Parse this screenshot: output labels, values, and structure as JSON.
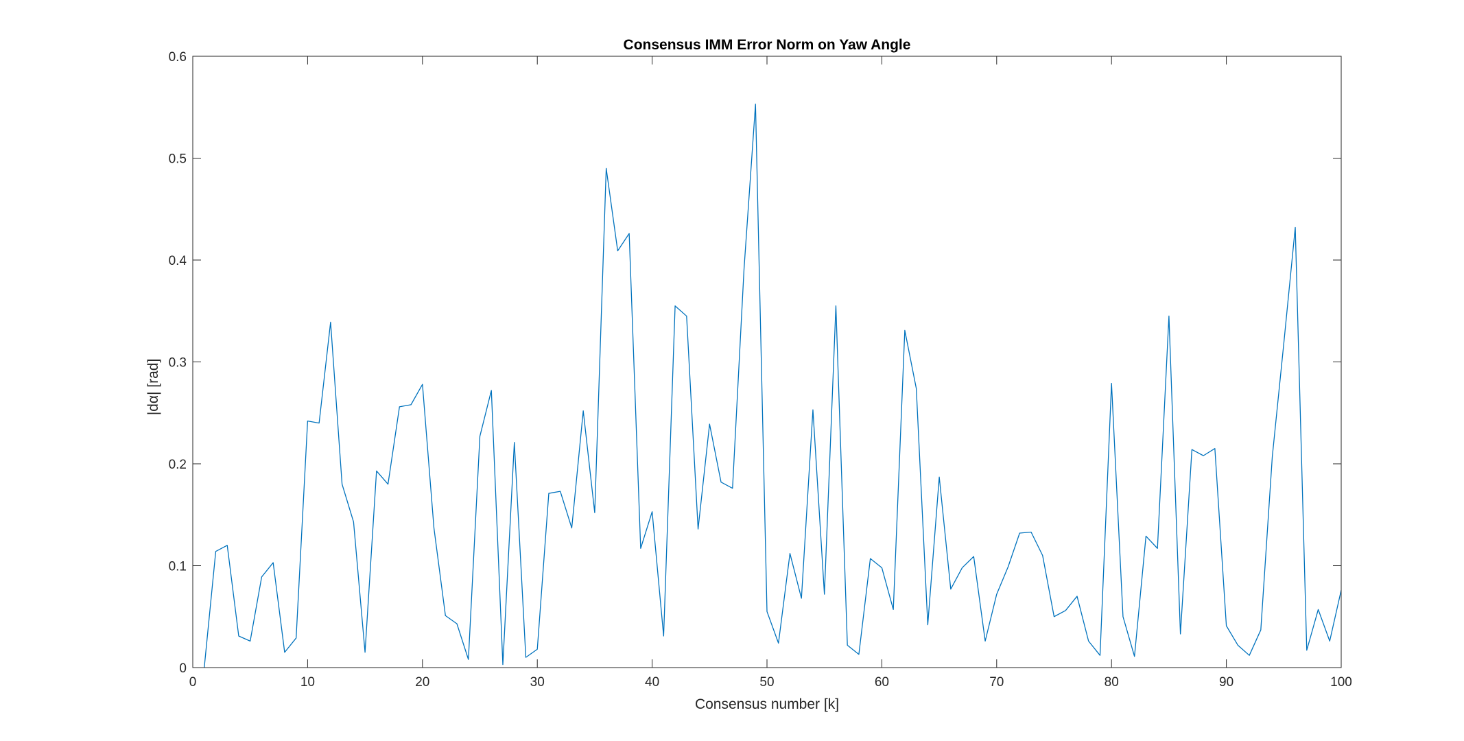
{
  "chart_data": {
    "type": "line",
    "title": "Consensus IMM Error Norm on Yaw Angle",
    "xlabel": "Consensus number [k]",
    "ylabel": "|dα| [rad]",
    "xlim": [
      0,
      100
    ],
    "ylim": [
      0,
      0.6
    ],
    "xticks": [
      0,
      10,
      20,
      30,
      40,
      50,
      60,
      70,
      80,
      90,
      100
    ],
    "yticks": [
      0,
      0.1,
      0.2,
      0.3,
      0.4,
      0.5,
      0.6
    ],
    "xtick_labels": [
      "0",
      "10",
      "20",
      "30",
      "40",
      "50",
      "60",
      "70",
      "80",
      "90",
      "100"
    ],
    "ytick_labels": [
      "0",
      "0.1",
      "0.2",
      "0.3",
      "0.4",
      "0.5",
      "0.6"
    ],
    "grid": false,
    "box": true,
    "line_color": "#0072BD",
    "x": [
      1,
      2,
      3,
      4,
      5,
      6,
      7,
      8,
      9,
      10,
      11,
      12,
      13,
      14,
      15,
      16,
      17,
      18,
      19,
      20,
      21,
      22,
      23,
      24,
      25,
      26,
      27,
      28,
      29,
      30,
      31,
      32,
      33,
      34,
      35,
      36,
      37,
      38,
      39,
      40,
      41,
      42,
      43,
      44,
      45,
      46,
      47,
      48,
      49,
      50,
      51,
      52,
      53,
      54,
      55,
      56,
      57,
      58,
      59,
      60,
      61,
      62,
      63,
      64,
      65,
      66,
      67,
      68,
      69,
      70,
      71,
      72,
      73,
      74,
      75,
      76,
      77,
      78,
      79,
      80,
      81,
      82,
      83,
      84,
      85,
      86,
      87,
      88,
      89,
      90,
      91,
      92,
      93,
      94,
      95,
      96,
      97,
      98,
      99,
      100
    ],
    "y": [
      0.0,
      0.114,
      0.12,
      0.031,
      0.026,
      0.089,
      0.103,
      0.015,
      0.029,
      0.242,
      0.24,
      0.339,
      0.18,
      0.143,
      0.015,
      0.193,
      0.18,
      0.256,
      0.258,
      0.278,
      0.137,
      0.051,
      0.043,
      0.008,
      0.227,
      0.272,
      0.003,
      0.221,
      0.01,
      0.018,
      0.171,
      0.173,
      0.137,
      0.252,
      0.152,
      0.49,
      0.409,
      0.426,
      0.117,
      0.153,
      0.031,
      0.355,
      0.345,
      0.136,
      0.239,
      0.182,
      0.176,
      0.391,
      0.553,
      0.055,
      0.024,
      0.112,
      0.068,
      0.253,
      0.072,
      0.355,
      0.022,
      0.013,
      0.107,
      0.098,
      0.057,
      0.331,
      0.274,
      0.042,
      0.187,
      0.077,
      0.098,
      0.109,
      0.026,
      0.072,
      0.099,
      0.132,
      0.133,
      0.11,
      0.05,
      0.056,
      0.07,
      0.026,
      0.012,
      0.279,
      0.05,
      0.011,
      0.129,
      0.117,
      0.345,
      0.033,
      0.214,
      0.208,
      0.215,
      0.041,
      0.022,
      0.012,
      0.037,
      0.207,
      0.318,
      0.432,
      0.017,
      0.057,
      0.026,
      0.076
    ]
  }
}
